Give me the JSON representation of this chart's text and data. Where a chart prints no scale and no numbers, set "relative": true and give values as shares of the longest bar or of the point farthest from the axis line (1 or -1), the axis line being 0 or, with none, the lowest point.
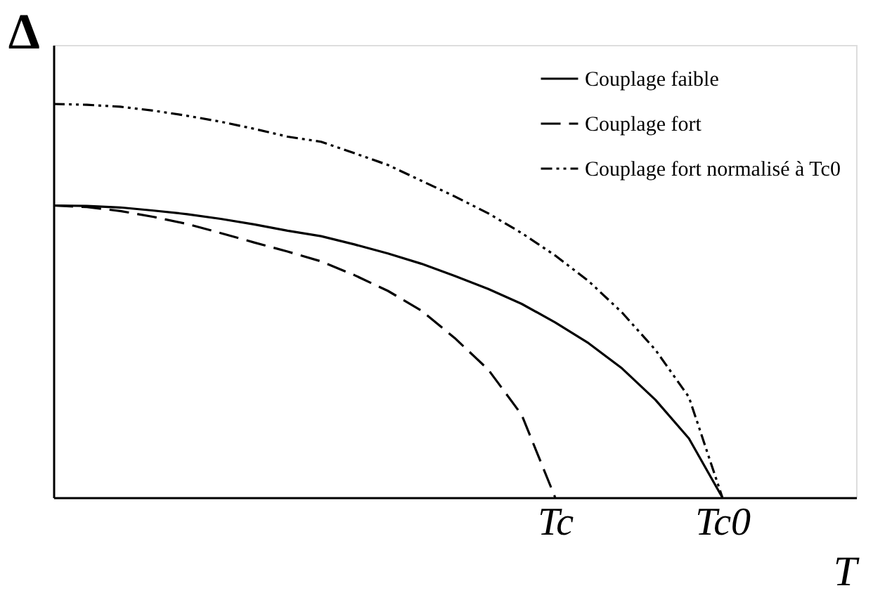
{
  "chart_data": {
    "type": "line",
    "relative": true,
    "xlabel": "T",
    "ylabel": "Δ",
    "categories": [
      null,
      null,
      null,
      null,
      null,
      null,
      null,
      null,
      null,
      null,
      null,
      null,
      null,
      null,
      null,
      "Tc",
      null,
      null,
      null,
      null,
      "Tc0",
      null,
      null,
      null,
      null
    ],
    "tick_labels": "x",
    "grid": false,
    "legend": "top right",
    "series": [
      {
        "name": "Couplage faible",
        "color": "#000000",
        "line_style": "solid",
        "values": [
          0.742,
          0.741,
          0.737,
          0.729,
          0.72,
          0.708,
          0.694,
          0.678,
          0.664,
          0.643,
          0.62,
          0.594,
          0.563,
          0.53,
          0.492,
          0.445,
          0.392,
          0.328,
          0.248,
          0.15,
          0,
          null,
          null,
          null,
          null
        ]
      },
      {
        "name": "Couplage fort",
        "color": "#000000",
        "line_style": "dashed",
        "values": [
          0.742,
          0.738,
          0.728,
          0.713,
          0.695,
          0.672,
          0.648,
          0.625,
          0.6,
          0.565,
          0.525,
          0.475,
          0.405,
          0.325,
          0.21,
          0,
          null,
          null,
          null,
          null,
          null,
          null,
          null,
          null,
          null
        ]
      },
      {
        "name": "Couplage fort normalisé à Tc0",
        "color": "#000000",
        "line_style": "dashdot",
        "values": [
          1,
          0.998,
          0.993,
          0.983,
          0.97,
          0.955,
          0.937,
          0.917,
          0.904,
          0.875,
          0.845,
          0.805,
          0.765,
          0.722,
          0.672,
          0.615,
          0.55,
          0.47,
          0.375,
          0.255,
          0,
          null,
          null,
          null,
          null
        ]
      }
    ]
  }
}
